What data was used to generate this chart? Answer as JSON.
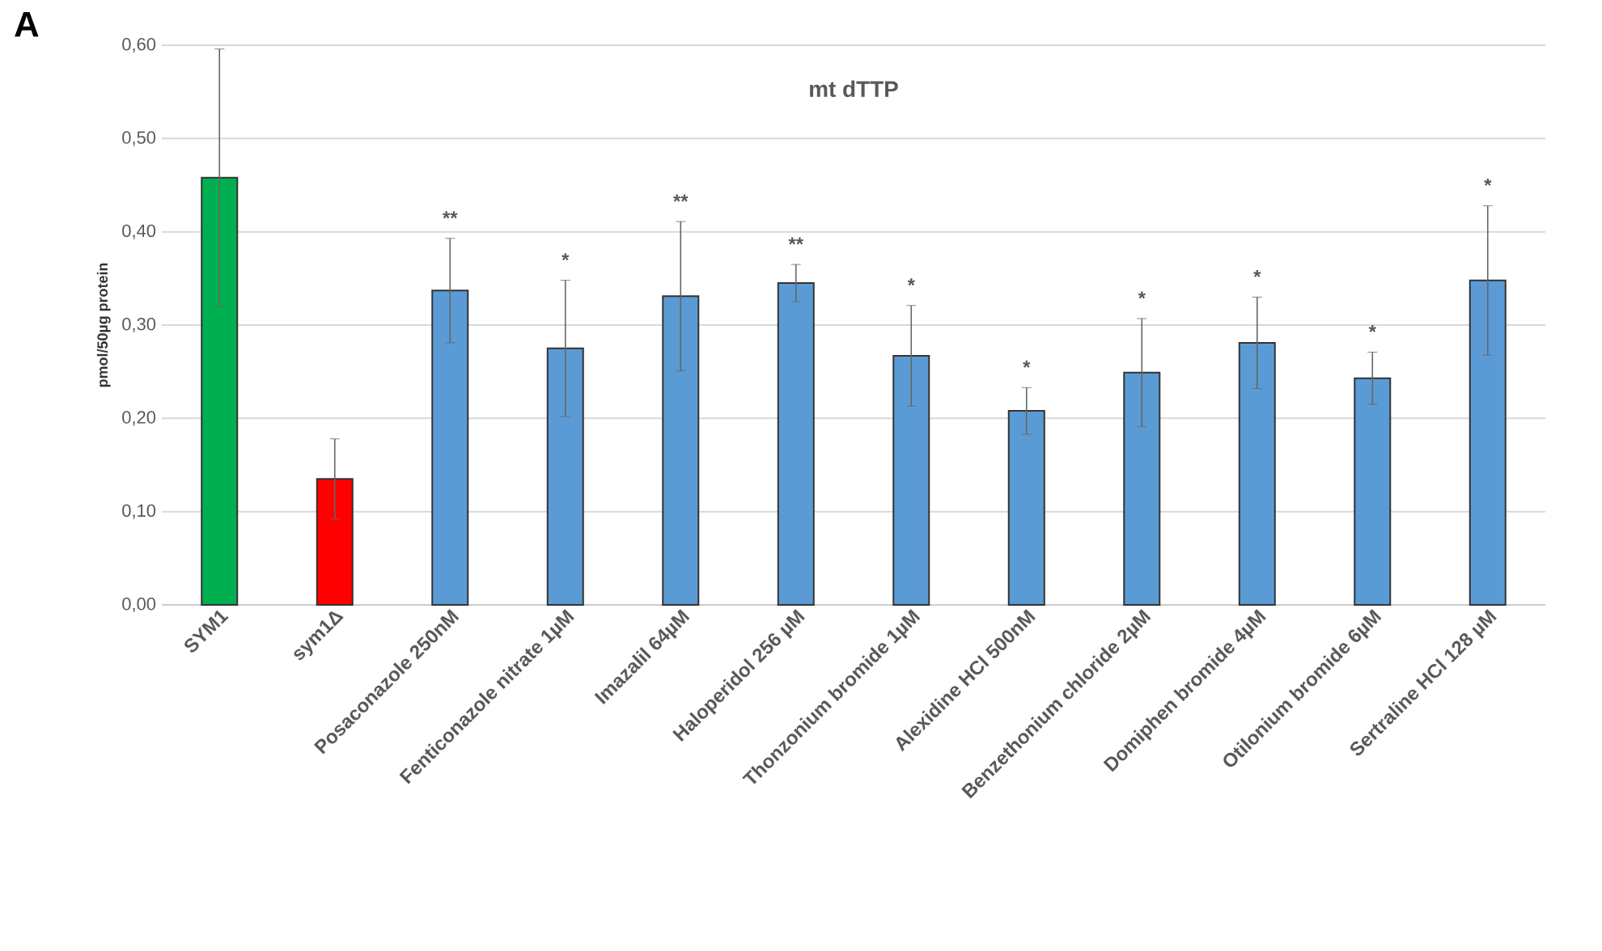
{
  "chart_data": {
    "type": "bar",
    "title": "mt dTTP",
    "ylabel": "pmol/50µg protein",
    "categories": [
      "SYM1",
      "sym1Δ",
      "Posaconazole 250nM",
      "Fenticonazole nitrate 1µM",
      "Imazalil 64µM",
      "Haloperidol 256 µM",
      "Thonzonium bromide 1µM",
      "Alexidine HCl 500nM",
      "Benzethonium chloride 2µM",
      "Domiphen bromide 4µM",
      "Otilonium bromide 6µM",
      "Sertraline HCl 128 µM"
    ],
    "values": [
      0.458,
      0.135,
      0.337,
      0.275,
      0.331,
      0.345,
      0.267,
      0.208,
      0.249,
      0.281,
      0.243,
      0.348
    ],
    "errors": [
      0.138,
      0.043,
      0.056,
      0.073,
      0.08,
      0.02,
      0.054,
      0.025,
      0.058,
      0.049,
      0.028,
      0.08
    ],
    "colors": [
      "#00b050",
      "#ff0000",
      "#5b9bd5",
      "#5b9bd5",
      "#5b9bd5",
      "#5b9bd5",
      "#5b9bd5",
      "#5b9bd5",
      "#5b9bd5",
      "#5b9bd5",
      "#5b9bd5",
      "#5b9bd5"
    ],
    "ylim": [
      0,
      0.6
    ],
    "yticks": [
      {
        "value": 0,
        "label": "0,00"
      },
      {
        "value": 0.1,
        "label": "0,10"
      },
      {
        "value": 0.2,
        "label": "0,20"
      },
      {
        "value": 0.3,
        "label": "0,30"
      },
      {
        "value": 0.4,
        "label": "0,40"
      },
      {
        "value": 0.5,
        "label": "0,50"
      },
      {
        "value": 0.6,
        "label": "0,60"
      }
    ],
    "grid": "y",
    "annotations": [
      "A",
      "**",
      "*",
      "**",
      "**",
      "*",
      "*",
      "*",
      "*",
      "*",
      "*"
    ]
  }
}
